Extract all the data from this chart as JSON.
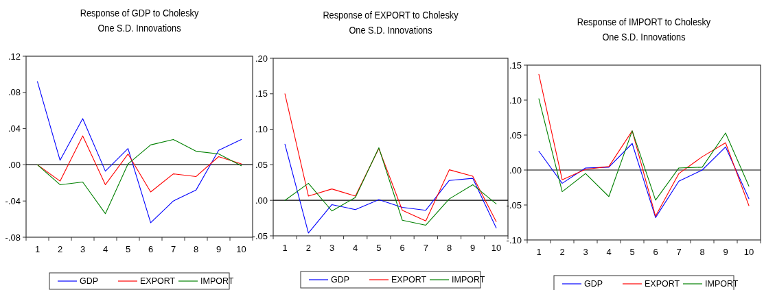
{
  "chart_data": [
    {
      "type": "line",
      "title": "Response of GDP to Cholesky\nOne S.D. Innovations",
      "categories": [
        "1",
        "2",
        "3",
        "4",
        "5",
        "6",
        "7",
        "8",
        "9",
        "10"
      ],
      "series": [
        {
          "name": "GDP",
          "color": "#0000ff",
          "values": [
            0.092,
            0.005,
            0.051,
            -0.007,
            0.018,
            -0.064,
            -0.04,
            -0.028,
            0.016,
            0.028
          ]
        },
        {
          "name": "EXPORT",
          "color": "#ff0000",
          "values": [
            0,
            -0.018,
            0.032,
            -0.022,
            0.012,
            -0.03,
            -0.01,
            -0.013,
            0.009,
            0.001
          ]
        },
        {
          "name": "IMPORT",
          "color": "#008000",
          "values": [
            0,
            -0.022,
            -0.019,
            -0.054,
            0.001,
            0.022,
            0.028,
            0.015,
            0.012,
            -0.001
          ]
        }
      ],
      "ylim": [
        -0.08,
        0.12
      ],
      "yticks": [
        {
          "value": -0.08,
          "label": "-.08"
        },
        {
          "value": -0.04,
          "label": "-.04"
        },
        {
          "value": 0,
          "label": ".00"
        },
        {
          "value": 0.04,
          "label": ".04"
        },
        {
          "value": 0.08,
          "label": ".08"
        },
        {
          "value": 0.12,
          "label": ".12"
        }
      ],
      "ref_lines": [
        {
          "axis": "y",
          "value": 0,
          "color": "#000000"
        }
      ],
      "legend": "bottom",
      "grid": false
    },
    {
      "type": "line",
      "title": "Response of EXPORT to Cholesky\nOne S.D. Innovations",
      "categories": [
        "1",
        "2",
        "3",
        "4",
        "5",
        "6",
        "7",
        "8",
        "9",
        "10"
      ],
      "series": [
        {
          "name": "GDP",
          "color": "#0000ff",
          "values": [
            0.079,
            -0.046,
            -0.006,
            -0.013,
            0.001,
            -0.01,
            -0.014,
            0.028,
            0.031,
            -0.039
          ]
        },
        {
          "name": "EXPORT",
          "color": "#ff0000",
          "values": [
            0.15,
            0.006,
            0.016,
            0.006,
            0.073,
            -0.014,
            -0.029,
            0.043,
            0.034,
            -0.03
          ]
        },
        {
          "name": "IMPORT",
          "color": "#008000",
          "values": [
            0,
            0.024,
            -0.015,
            0.004,
            0.074,
            -0.028,
            -0.035,
            0.002,
            0.022,
            -0.005
          ]
        }
      ],
      "ylim": [
        -0.05,
        0.2
      ],
      "yticks": [
        {
          "value": -0.05,
          "label": "-.05"
        },
        {
          "value": 0,
          "label": ".00"
        },
        {
          "value": 0.05,
          "label": ".05"
        },
        {
          "value": 0.1,
          "label": ".10"
        },
        {
          "value": 0.15,
          "label": ".15"
        },
        {
          "value": 0.2,
          "label": ".20"
        }
      ],
      "ref_lines": [
        {
          "axis": "y",
          "value": 0,
          "color": "#000000"
        }
      ],
      "legend": "bottom",
      "grid": false
    },
    {
      "type": "line",
      "title": "Response of IMPORT to Cholesky\nOne S.D. Innovations",
      "categories": [
        "1",
        "2",
        "3",
        "4",
        "5",
        "6",
        "7",
        "8",
        "9",
        "10"
      ],
      "series": [
        {
          "name": "GDP",
          "color": "#0000ff",
          "values": [
            0.027,
            -0.019,
            0.003,
            0.004,
            0.038,
            -0.068,
            -0.016,
            0.0,
            0.033,
            -0.041
          ]
        },
        {
          "name": "EXPORT",
          "color": "#ff0000",
          "values": [
            0.137,
            -0.014,
            0.001,
            0.005,
            0.056,
            -0.066,
            -0.005,
            0.019,
            0.039,
            -0.051
          ]
        },
        {
          "name": "IMPORT",
          "color": "#008000",
          "values": [
            0.102,
            -0.031,
            -0.005,
            -0.038,
            0.056,
            -0.043,
            0.003,
            0.004,
            0.053,
            -0.023
          ]
        }
      ],
      "ylim": [
        -0.1,
        0.15
      ],
      "yticks": [
        {
          "value": -0.1,
          "label": "-.10"
        },
        {
          "value": -0.05,
          "label": "-.05"
        },
        {
          "value": 0,
          "label": ".00"
        },
        {
          "value": 0.05,
          "label": ".05"
        },
        {
          "value": 0.1,
          "label": ".10"
        },
        {
          "value": 0.15,
          "label": ".15"
        }
      ],
      "ref_lines": [
        {
          "axis": "y",
          "value": 0,
          "color": "#000000"
        }
      ],
      "legend": "bottom",
      "grid": false
    }
  ]
}
